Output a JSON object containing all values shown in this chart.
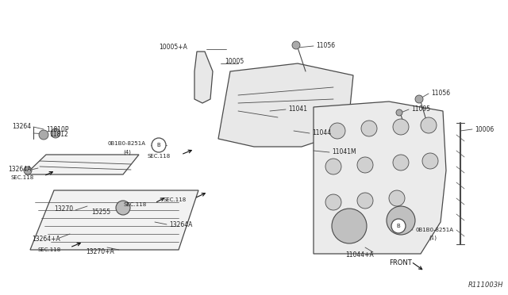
{
  "bg_color": "#ffffff",
  "line_color": "#4a4a4a",
  "text_color": "#222222",
  "ref_code": "R111003H",
  "fig_w": 6.4,
  "fig_h": 3.72,
  "dpi": 100,
  "xlim": [
    0,
    640
  ],
  "ylim": [
    0,
    372
  ]
}
